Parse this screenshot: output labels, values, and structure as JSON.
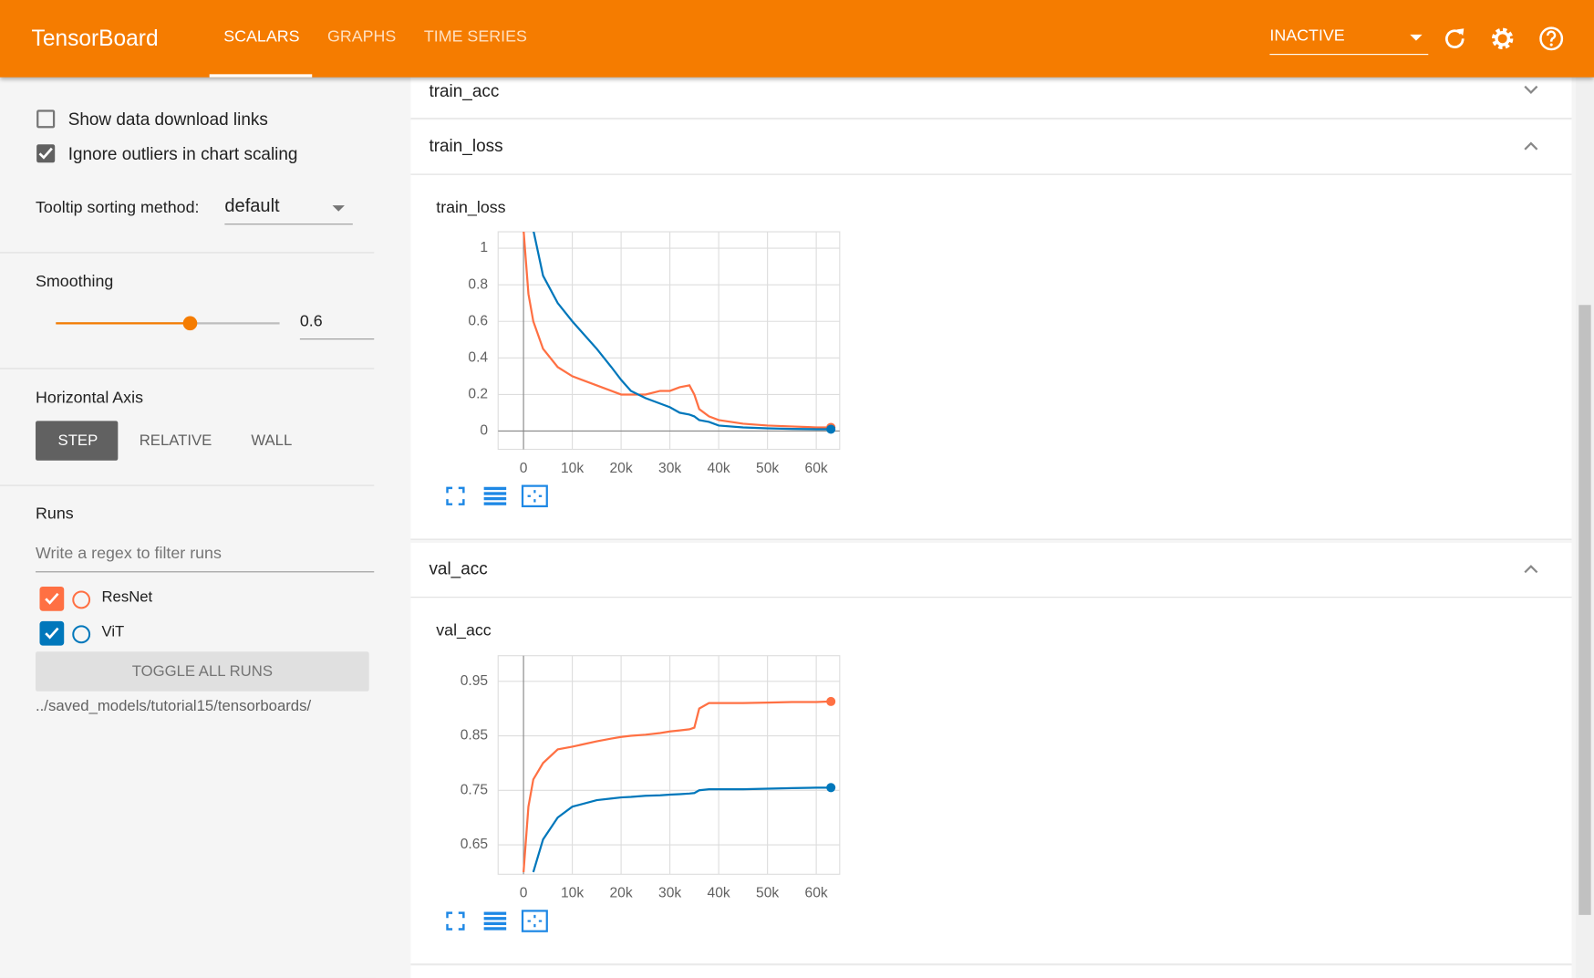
{
  "header": {
    "title": "TensorBoard",
    "tabs": [
      "SCALARS",
      "GRAPHS",
      "TIME SERIES"
    ],
    "status": "INACTIVE"
  },
  "sidebar": {
    "options": [
      {
        "label": "Show data download links",
        "checked": false
      },
      {
        "label": "Ignore outliers in chart scaling",
        "checked": true
      }
    ],
    "tooltip_label": "Tooltip sorting method:",
    "tooltip_value": "default",
    "smoothing_label": "Smoothing",
    "smoothing_value": 0.6,
    "axis_label": "Horizontal Axis",
    "axis_options": [
      "STEP",
      "RELATIVE",
      "WALL"
    ],
    "runs_label": "Runs",
    "filter_placeholder": "Write a regex to filter runs",
    "runs": [
      {
        "name": "ResNet",
        "color": "#ff7043",
        "checked": true
      },
      {
        "name": "ViT",
        "color": "#0077bb",
        "checked": true
      }
    ],
    "toggle_button": "TOGGLE ALL RUNS",
    "logdir": "../saved_models/tutorial15/tensorboards/"
  },
  "panels": [
    {
      "title": "train_acc"
    },
    {
      "title": "train_loss"
    },
    {
      "title": "val_acc"
    }
  ],
  "chart_data": [
    {
      "type": "line",
      "title": "train_loss",
      "x": [
        0,
        1000,
        2000,
        4000,
        7000,
        10000,
        15000,
        18000,
        20000,
        22000,
        25000,
        28000,
        30000,
        32000,
        34000,
        35000,
        36000,
        38000,
        40000,
        45000,
        50000,
        55000,
        60000,
        63000
      ],
      "series": [
        {
          "color": "#ff7043",
          "values": [
            1.1,
            0.75,
            0.6,
            0.45,
            0.35,
            0.3,
            0.25,
            0.22,
            0.2,
            0.2,
            0.2,
            0.22,
            0.22,
            0.24,
            0.25,
            0.2,
            0.12,
            0.08,
            0.06,
            0.04,
            0.03,
            0.025,
            0.02,
            0.02
          ]
        },
        {
          "color": "#0077bb",
          "values": [
            null,
            1.2,
            1.1,
            0.85,
            0.7,
            0.6,
            0.45,
            0.35,
            0.28,
            0.22,
            0.18,
            0.15,
            0.13,
            0.1,
            0.09,
            0.08,
            0.06,
            0.05,
            0.03,
            0.02,
            0.015,
            0.012,
            0.01,
            0.01
          ]
        }
      ],
      "xlim": [
        -5200,
        64800
      ],
      "ylim": [
        -0.1,
        1.09
      ],
      "xticks": [
        0,
        {
          "value": 10000,
          "label": "10k"
        },
        {
          "value": 20000,
          "label": "20k"
        },
        {
          "value": 30000,
          "label": "30k"
        },
        {
          "value": 40000,
          "label": "40k"
        },
        {
          "value": 50000,
          "label": "50k"
        },
        {
          "value": 60000,
          "label": "60k"
        }
      ],
      "yticks": [
        0,
        0.2,
        0.4,
        0.6,
        0.8,
        1
      ],
      "grid": true
    },
    {
      "type": "line",
      "title": "val_acc",
      "x": [
        0,
        1000,
        2000,
        4000,
        7000,
        10000,
        15000,
        18000,
        20000,
        22000,
        25000,
        28000,
        30000,
        32000,
        34000,
        35000,
        36000,
        38000,
        40000,
        45000,
        50000,
        55000,
        60000,
        63000
      ],
      "series": [
        {
          "color": "#ff7043",
          "values": [
            0.6,
            0.72,
            0.77,
            0.8,
            0.825,
            0.83,
            0.84,
            0.845,
            0.848,
            0.85,
            0.852,
            0.855,
            0.858,
            0.86,
            0.862,
            0.865,
            0.9,
            0.91,
            0.91,
            0.91,
            0.911,
            0.912,
            0.912,
            0.913
          ]
        },
        {
          "color": "#0077bb",
          "values": [
            null,
            null,
            0.6,
            0.66,
            0.7,
            0.72,
            0.732,
            0.735,
            0.737,
            0.738,
            0.74,
            0.741,
            0.742,
            0.743,
            0.744,
            0.745,
            0.75,
            0.752,
            0.752,
            0.752,
            0.753,
            0.754,
            0.755,
            0.755
          ]
        }
      ],
      "xlim": [
        -5200,
        64800
      ],
      "ylim": [
        0.596,
        0.997
      ],
      "xticks": [
        0,
        {
          "value": 10000,
          "label": "10k"
        },
        {
          "value": 20000,
          "label": "20k"
        },
        {
          "value": 30000,
          "label": "30k"
        },
        {
          "value": 40000,
          "label": "40k"
        },
        {
          "value": 50000,
          "label": "50k"
        },
        {
          "value": 60000,
          "label": "60k"
        }
      ],
      "yticks": [
        0.65,
        0.75,
        0.85,
        0.95
      ],
      "grid": true
    }
  ]
}
